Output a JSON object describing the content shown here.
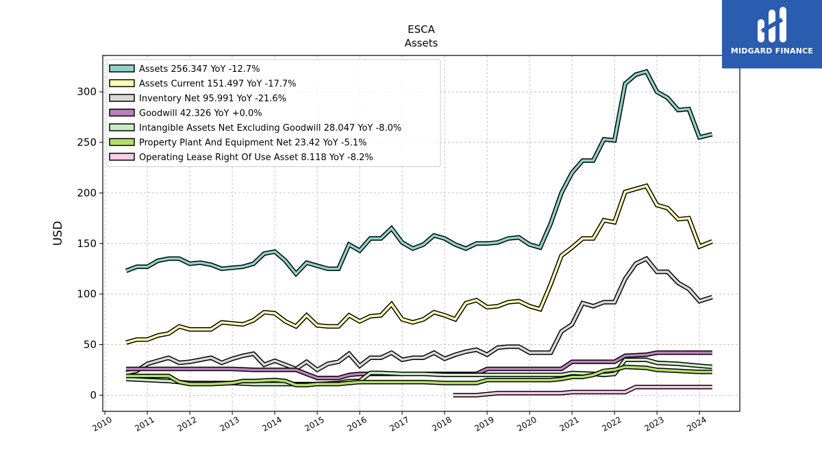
{
  "brand": {
    "name": "MIDGARD FINANCE",
    "color": "#2a5db0"
  },
  "chart_data": {
    "type": "line",
    "title": "ESCA",
    "subtitle": "Assets",
    "ylabel": "USD",
    "xlabel": "",
    "xlim": [
      2009.95,
      2024.95
    ],
    "ylim": [
      -16,
      336
    ],
    "yticks": [
      0,
      50,
      100,
      150,
      200,
      250,
      300
    ],
    "xticks": [
      "2010",
      "2011",
      "2012",
      "2013",
      "2014",
      "2015",
      "2016",
      "2017",
      "2018",
      "2019",
      "2020",
      "2021",
      "2022",
      "2023",
      "2024"
    ],
    "grid": true,
    "legend_position": "top-left",
    "series": [
      {
        "name": "Assets  256.347 YoY -12.7%",
        "color": "#8dd3c7",
        "x": [
          2010.5,
          2010.75,
          2011.0,
          2011.25,
          2011.5,
          2011.75,
          2012.0,
          2012.25,
          2012.5,
          2012.75,
          2013.0,
          2013.25,
          2013.5,
          2013.75,
          2014.0,
          2014.25,
          2014.5,
          2014.75,
          2015.0,
          2015.25,
          2015.5,
          2015.75,
          2016.0,
          2016.25,
          2016.5,
          2016.75,
          2017.0,
          2017.25,
          2017.5,
          2017.75,
          2018.0,
          2018.25,
          2018.5,
          2018.75,
          2019.0,
          2019.25,
          2019.5,
          2019.75,
          2020.0,
          2020.25,
          2020.5,
          2020.75,
          2021.0,
          2021.25,
          2021.5,
          2021.75,
          2022.0,
          2022.25,
          2022.5,
          2022.75,
          2023.0,
          2023.25,
          2023.5,
          2023.75,
          2024.0,
          2024.3
        ],
        "values": [
          123,
          127,
          127,
          133,
          135,
          135,
          130,
          131,
          129,
          125,
          126,
          127,
          130,
          140,
          142,
          133,
          120,
          131,
          128,
          125,
          125,
          149,
          143,
          155,
          155,
          165,
          151,
          145,
          149,
          158,
          155,
          149,
          145,
          150,
          150,
          151,
          155,
          156,
          149,
          146,
          170,
          200,
          220,
          232,
          232,
          253,
          252,
          308,
          317,
          320,
          300,
          294,
          282,
          283,
          255,
          258
        ]
      },
      {
        "name": "Assets Current  151.497 YoY -17.7%",
        "color": "#ffffb3",
        "x": [
          2010.5,
          2010.75,
          2011.0,
          2011.25,
          2011.5,
          2011.75,
          2012.0,
          2012.25,
          2012.5,
          2012.75,
          2013.0,
          2013.25,
          2013.5,
          2013.75,
          2014.0,
          2014.25,
          2014.5,
          2014.75,
          2015.0,
          2015.25,
          2015.5,
          2015.75,
          2016.0,
          2016.25,
          2016.5,
          2016.75,
          2017.0,
          2017.25,
          2017.5,
          2017.75,
          2018.0,
          2018.25,
          2018.5,
          2018.75,
          2019.0,
          2019.25,
          2019.5,
          2019.75,
          2020.0,
          2020.25,
          2020.5,
          2020.75,
          2021.0,
          2021.25,
          2021.5,
          2021.75,
          2022.0,
          2022.25,
          2022.5,
          2022.75,
          2023.0,
          2023.25,
          2023.5,
          2023.75,
          2024.0,
          2024.3
        ],
        "values": [
          52,
          55,
          55,
          59,
          61,
          68,
          65,
          65,
          65,
          72,
          71,
          70,
          74,
          82,
          81,
          73,
          68,
          79,
          69,
          68,
          68,
          79,
          73,
          78,
          79,
          90,
          75,
          72,
          75,
          82,
          79,
          75,
          91,
          94,
          87,
          88,
          92,
          93,
          88,
          85,
          110,
          138,
          146,
          155,
          155,
          173,
          171,
          201,
          204,
          207,
          188,
          185,
          174,
          175,
          147,
          152
        ]
      },
      {
        "name": "Inventory Net  95.991 YoY -21.6%",
        "color": "#d9d9d9",
        "x": [
          2010.5,
          2010.75,
          2011.0,
          2011.25,
          2011.5,
          2011.75,
          2012.0,
          2012.25,
          2012.5,
          2012.75,
          2013.0,
          2013.25,
          2013.5,
          2013.75,
          2014.0,
          2014.25,
          2014.5,
          2014.75,
          2015.0,
          2015.25,
          2015.5,
          2015.75,
          2016.0,
          2016.25,
          2016.5,
          2016.75,
          2017.0,
          2017.25,
          2017.5,
          2017.75,
          2018.0,
          2018.25,
          2018.5,
          2018.75,
          2019.0,
          2019.25,
          2019.5,
          2019.75,
          2020.0,
          2020.25,
          2020.5,
          2020.75,
          2021.0,
          2021.25,
          2021.5,
          2021.75,
          2022.0,
          2022.25,
          2022.5,
          2022.75,
          2023.0,
          2023.25,
          2023.5,
          2023.75,
          2024.0,
          2024.3
        ],
        "values": [
          22,
          24,
          31,
          34,
          37,
          32,
          33,
          35,
          37,
          32,
          36,
          39,
          41,
          30,
          34,
          30,
          26,
          33,
          25,
          31,
          33,
          41,
          29,
          37,
          37,
          42,
          35,
          37,
          37,
          42,
          36,
          40,
          43,
          45,
          40,
          47,
          48,
          48,
          42,
          42,
          42,
          63,
          70,
          91,
          88,
          92,
          92,
          115,
          130,
          135,
          122,
          122,
          111,
          105,
          93,
          97
        ]
      },
      {
        "name": "Goodwill  42.326 YoY +0.0%",
        "color": "#bc80bd",
        "x": [
          2010.5,
          2011.0,
          2011.5,
          2012.0,
          2012.5,
          2012.75,
          2013.0,
          2013.5,
          2014.0,
          2014.5,
          2015.0,
          2015.5,
          2015.75,
          2016.0,
          2016.5,
          2017.0,
          2017.5,
          2018.0,
          2018.5,
          2018.75,
          2019.0,
          2019.5,
          2020.0,
          2020.5,
          2020.75,
          2021.0,
          2021.5,
          2021.75,
          2022.0,
          2022.25,
          2022.75,
          2023.0,
          2023.5,
          2024.0,
          2024.3
        ],
        "values": [
          26,
          26,
          26,
          26,
          26,
          26,
          26,
          25,
          25,
          25,
          17,
          17,
          20,
          21,
          21,
          21,
          21,
          21,
          21,
          21,
          26,
          26,
          26,
          26,
          26,
          33,
          33,
          33,
          33,
          39,
          40,
          42,
          42,
          42,
          42
        ]
      },
      {
        "name": "Intangible Assets Net Excluding Goodwill  28.047 YoY -8.0%",
        "color": "#ccebc5",
        "x": [
          2010.5,
          2011.0,
          2011.5,
          2011.75,
          2012.0,
          2012.5,
          2012.75,
          2013.0,
          2013.5,
          2014.0,
          2014.5,
          2015.0,
          2015.5,
          2015.75,
          2016.0,
          2016.25,
          2016.5,
          2017.0,
          2017.5,
          2018.0,
          2018.5,
          2018.75,
          2019.0,
          2019.5,
          2020.0,
          2020.5,
          2020.75,
          2021.0,
          2021.5,
          2021.75,
          2022.0,
          2022.25,
          2022.75,
          2023.0,
          2023.5,
          2024.0,
          2024.3
        ],
        "values": [
          16,
          15,
          14,
          13,
          12,
          12,
          12,
          12,
          11,
          11,
          11,
          11,
          12,
          14,
          14,
          22,
          22,
          21,
          21,
          20,
          20,
          20,
          20,
          20,
          20,
          20,
          20,
          22,
          21,
          20,
          21,
          35,
          35,
          32,
          31,
          29,
          28
        ]
      },
      {
        "name": "Property Plant And Equipment Net  23.42 YoY -5.1%",
        "color": "#b3de69",
        "x": [
          2010.5,
          2011.0,
          2011.5,
          2011.75,
          2012.0,
          2012.5,
          2013.0,
          2013.25,
          2013.5,
          2014.0,
          2014.25,
          2014.5,
          2014.75,
          2015.0,
          2015.5,
          2015.75,
          2016.0,
          2016.5,
          2017.0,
          2017.5,
          2018.0,
          2018.5,
          2018.75,
          2019.0,
          2019.5,
          2020.0,
          2020.25,
          2020.5,
          2020.75,
          2021.0,
          2021.25,
          2021.5,
          2021.75,
          2022.0,
          2022.25,
          2022.75,
          2023.0,
          2023.5,
          2024.0,
          2024.3
        ],
        "values": [
          19,
          19,
          19,
          13,
          11,
          11,
          12,
          14,
          14,
          15,
          14,
          10,
          10,
          11,
          11,
          12,
          13,
          13,
          13,
          13,
          12,
          12,
          12,
          15,
          15,
          15,
          15,
          15,
          16,
          18,
          18,
          20,
          24,
          25,
          28,
          27,
          25,
          24,
          23,
          23
        ]
      },
      {
        "name": "Operating Lease Right Of Use Asset  8.118 YoY -8.2%",
        "color": "#fccde5",
        "x": [
          2018.2,
          2018.5,
          2018.75,
          2019.0,
          2019.25,
          2019.5,
          2019.75,
          2020.0,
          2020.25,
          2020.5,
          2020.75,
          2021.0,
          2021.25,
          2021.5,
          2021.75,
          2022.0,
          2022.25,
          2022.5,
          2022.75,
          2023.0,
          2023.5,
          2024.0,
          2024.3
        ],
        "values": [
          0,
          0,
          0,
          1,
          2,
          2,
          2,
          2,
          2,
          2,
          2,
          3,
          3,
          3,
          3,
          3,
          3,
          8,
          8,
          8,
          8,
          8,
          8
        ]
      }
    ]
  }
}
